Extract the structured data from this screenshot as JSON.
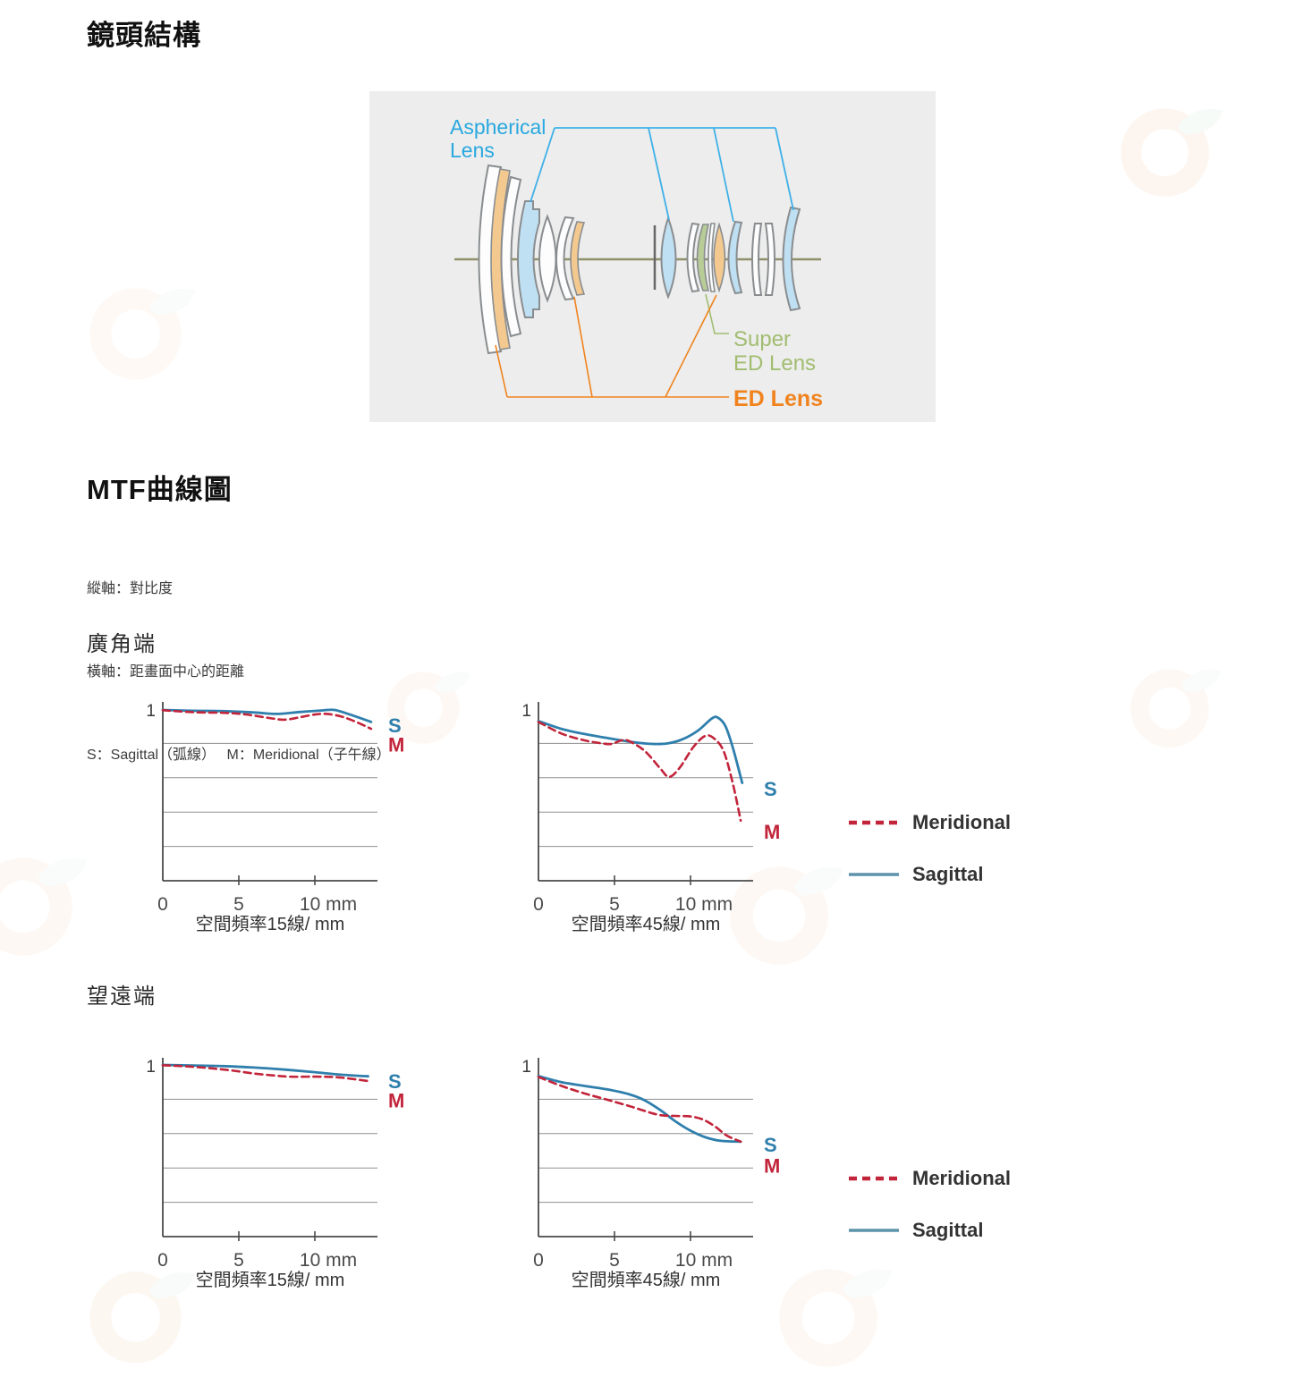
{
  "page": {
    "lens_structure_title": "鏡頭結構",
    "mtf_title": "MTF曲線圖",
    "wide_title": "廣角端",
    "tele_title": "望遠端"
  },
  "mtf_notes": {
    "line1": "縱軸：對比度",
    "line2": "橫軸：距畫面中心的距離",
    "line3": "S：Sagittal（弧線）　 M：Meridional（子午線）"
  },
  "lens_diagram": {
    "aspherical_label_line1": "Aspherical",
    "aspherical_label_line2": "Lens",
    "super_ed_label_line1": "Super",
    "super_ed_label_line2": "ED Lens",
    "ed_label": "ED Lens",
    "colors": {
      "panel_background": "#ecedec",
      "aspherical_fill": "#bfe0f2",
      "ed_fill": "#f3c98f",
      "super_ed_fill": "#b7cc96",
      "element_fill": "#fdfdfd",
      "element_stroke": "#8a8d90",
      "optical_axis": "#90906a",
      "callout_blue": "#3fb0e8",
      "label_blue": "#29a8e0",
      "label_green": "#a2bd70",
      "label_orange": "#f0831e"
    }
  },
  "legend": {
    "meridional": "Meridional",
    "sagittal": "Sagittal",
    "meridional_color": "#c2243a",
    "sagittal_color": "#5d93ab"
  },
  "chart_common": {
    "y_top_label": "1",
    "x_tick_labels": [
      "0",
      "5",
      "10 mm"
    ],
    "x_ticks_mm": [
      0,
      5,
      10
    ],
    "s_label": "S",
    "m_label": "M",
    "sagittal_color": "#2f7fad",
    "meridional_color": "#c2243a",
    "grid_color": "#8f8f8f",
    "axis_color": "#4a4a4a",
    "gridlines": [
      0.8,
      0.6,
      0.4,
      0.2
    ],
    "ylim": [
      0,
      1
    ],
    "xlim_mm": [
      0,
      14.1
    ],
    "ylabel": "對比度 (contrast)",
    "xlabel": "距畫面中心的距離 (mm)"
  },
  "chart_data": [
    {
      "id": "wide-15",
      "type": "line",
      "group": "廣角端",
      "title": "空間頻率15線/ mm",
      "s_label_y": 0.9,
      "m_label_y": 0.79,
      "series": [
        {
          "name": "Sagittal",
          "style": "solid",
          "points": [
            [
              0,
              0.995
            ],
            [
              2,
              0.99
            ],
            [
              4,
              0.988
            ],
            [
              6,
              0.98
            ],
            [
              7.5,
              0.972
            ],
            [
              9,
              0.983
            ],
            [
              10.5,
              0.992
            ],
            [
              11.3,
              0.995
            ],
            [
              12.3,
              0.968
            ],
            [
              13.7,
              0.925
            ]
          ]
        },
        {
          "name": "Meridional",
          "style": "dashed",
          "points": [
            [
              0,
              0.993
            ],
            [
              2,
              0.982
            ],
            [
              4,
              0.978
            ],
            [
              5.5,
              0.968
            ],
            [
              7,
              0.948
            ],
            [
              8,
              0.938
            ],
            [
              9,
              0.952
            ],
            [
              10,
              0.968
            ],
            [
              10.8,
              0.972
            ],
            [
              11.8,
              0.955
            ],
            [
              12.8,
              0.922
            ],
            [
              13.7,
              0.885
            ]
          ]
        }
      ]
    },
    {
      "id": "wide-45",
      "type": "line",
      "group": "廣角端",
      "title": "空間頻率45線/ mm",
      "s_label_y": 0.53,
      "m_label_y": 0.28,
      "series": [
        {
          "name": "Sagittal",
          "style": "solid",
          "points": [
            [
              0,
              0.93
            ],
            [
              1.5,
              0.885
            ],
            [
              3,
              0.855
            ],
            [
              4.5,
              0.832
            ],
            [
              6,
              0.81
            ],
            [
              7.5,
              0.797
            ],
            [
              8.5,
              0.8
            ],
            [
              9.5,
              0.825
            ],
            [
              10.5,
              0.875
            ],
            [
              11.4,
              0.945
            ],
            [
              11.8,
              0.95
            ],
            [
              12.3,
              0.9
            ],
            [
              12.8,
              0.77
            ],
            [
              13.4,
              0.57
            ]
          ]
        },
        {
          "name": "Meridional",
          "style": "dashed",
          "points": [
            [
              0,
              0.925
            ],
            [
              1.5,
              0.858
            ],
            [
              3,
              0.818
            ],
            [
              4.2,
              0.8
            ],
            [
              4.8,
              0.797
            ],
            [
              5.5,
              0.818
            ],
            [
              6,
              0.812
            ],
            [
              7,
              0.755
            ],
            [
              8,
              0.655
            ],
            [
              8.6,
              0.605
            ],
            [
              9.3,
              0.66
            ],
            [
              10.2,
              0.78
            ],
            [
              11,
              0.845
            ],
            [
              11.6,
              0.825
            ],
            [
              12.2,
              0.75
            ],
            [
              12.8,
              0.56
            ],
            [
              13.3,
              0.35
            ]
          ]
        }
      ]
    },
    {
      "id": "tele-15",
      "type": "line",
      "group": "望遠端",
      "title": "空間頻率15線/ mm",
      "s_label_y": 0.9,
      "m_label_y": 0.79,
      "series": [
        {
          "name": "Sagittal",
          "style": "solid",
          "points": [
            [
              0,
              1.0
            ],
            [
              2,
              0.997
            ],
            [
              4,
              0.993
            ],
            [
              6,
              0.985
            ],
            [
              8,
              0.973
            ],
            [
              10,
              0.958
            ],
            [
              11.5,
              0.945
            ],
            [
              13.5,
              0.934
            ]
          ]
        },
        {
          "name": "Meridional",
          "style": "dashed",
          "points": [
            [
              0,
              0.998
            ],
            [
              1.5,
              0.992
            ],
            [
              3,
              0.982
            ],
            [
              4.5,
              0.968
            ],
            [
              6,
              0.95
            ],
            [
              7.5,
              0.937
            ],
            [
              8.5,
              0.931
            ],
            [
              10,
              0.932
            ],
            [
              11.5,
              0.928
            ],
            [
              13.5,
              0.906
            ]
          ]
        }
      ]
    },
    {
      "id": "tele-45",
      "type": "line",
      "group": "望遠端",
      "title": "空間頻率45線/ mm",
      "s_label_y": 0.53,
      "m_label_y": 0.41,
      "series": [
        {
          "name": "Sagittal",
          "style": "solid",
          "points": [
            [
              0,
              0.935
            ],
            [
              1.5,
              0.9
            ],
            [
              3,
              0.878
            ],
            [
              4.5,
              0.858
            ],
            [
              6,
              0.828
            ],
            [
              7,
              0.793
            ],
            [
              8,
              0.738
            ],
            [
              9,
              0.672
            ],
            [
              10,
              0.617
            ],
            [
              11,
              0.578
            ],
            [
              12,
              0.558
            ],
            [
              13.3,
              0.553
            ]
          ]
        },
        {
          "name": "Meridional",
          "style": "dashed",
          "points": [
            [
              0,
              0.93
            ],
            [
              1.5,
              0.878
            ],
            [
              3,
              0.835
            ],
            [
              4.5,
              0.798
            ],
            [
              6,
              0.76
            ],
            [
              7,
              0.732
            ],
            [
              8,
              0.708
            ],
            [
              9,
              0.703
            ],
            [
              10,
              0.7
            ],
            [
              10.8,
              0.683
            ],
            [
              11.6,
              0.642
            ],
            [
              12.4,
              0.588
            ],
            [
              13.3,
              0.553
            ]
          ]
        }
      ]
    }
  ]
}
